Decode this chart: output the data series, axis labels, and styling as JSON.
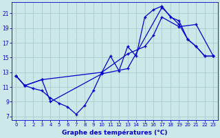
{
  "title": "Graphe des températures (°C)",
  "bg_color": "#cce8e8",
  "grid_color": "#aacccc",
  "line_color": "#0000cc",
  "xlim": [
    -0.5,
    23.5
  ],
  "ylim": [
    6.5,
    22.5
  ],
  "xticks": [
    0,
    1,
    2,
    3,
    4,
    5,
    6,
    7,
    8,
    9,
    10,
    11,
    12,
    13,
    14,
    15,
    16,
    17,
    18,
    19,
    20,
    21,
    22,
    23
  ],
  "yticks": [
    7,
    9,
    11,
    13,
    15,
    17,
    19,
    21
  ],
  "line1_x": [
    0,
    1,
    2,
    3,
    4,
    5,
    6,
    7,
    8,
    9,
    10,
    11,
    12,
    13,
    14,
    15,
    16,
    17,
    18,
    19,
    20,
    21,
    22,
    23
  ],
  "line1_y": [
    12.5,
    11.2,
    10.8,
    10.5,
    9.5,
    8.8,
    8.3,
    7.3,
    8.5,
    10.5,
    13.0,
    15.2,
    13.2,
    16.5,
    15.2,
    20.5,
    21.5,
    22.0,
    20.5,
    20.0,
    17.5,
    16.5,
    15.2,
    15.2
  ],
  "line2_x": [
    0,
    1,
    3,
    10,
    13,
    15,
    16,
    17,
    19,
    21,
    23
  ],
  "line2_y": [
    12.5,
    11.2,
    12.0,
    13.0,
    15.5,
    16.5,
    18.0,
    20.5,
    19.2,
    19.5,
    15.2
  ],
  "line3_x": [
    0,
    1,
    3,
    4,
    10,
    13,
    17,
    19,
    20,
    21,
    22,
    23
  ],
  "line3_y": [
    12.5,
    11.2,
    12.0,
    9.0,
    12.8,
    13.5,
    21.8,
    19.5,
    17.5,
    16.5,
    15.2,
    15.2
  ]
}
